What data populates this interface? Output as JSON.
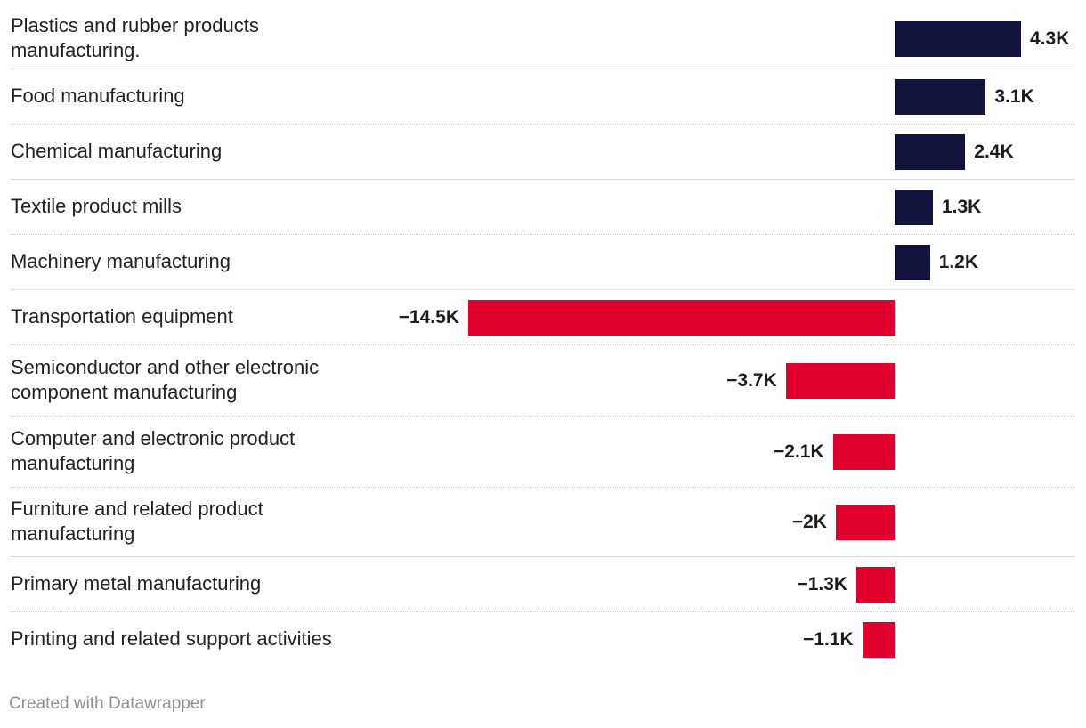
{
  "chart_data": {
    "type": "bar",
    "orientation": "horizontal",
    "title": "",
    "xlabel": "",
    "ylabel": "",
    "categories": [
      "Plastics and rubber products manufacturing.",
      "Food manufacturing",
      "Chemical manufacturing",
      "Textile product mills",
      "Machinery manufacturing",
      "Transportation equipment",
      "Semiconductor and other electronic component manufacturing",
      "Computer and electronic product manufacturing",
      "Furniture and related product manufacturing",
      "Primary metal manufacturing",
      "Printing and related support activities"
    ],
    "values": [
      4300,
      3100,
      2400,
      1300,
      1200,
      -14500,
      -3700,
      -2100,
      -2000,
      -1300,
      -1100
    ],
    "value_labels": [
      "4.3K",
      "3.1K",
      "2.4K",
      "1.3K",
      "1.2K",
      "−14.5K",
      "−3.7K",
      "−2.1K",
      "−2K",
      "−1.3K",
      "−1.1K"
    ],
    "xlim": [
      -14500,
      4300
    ],
    "colors": {
      "positive": "#13133f",
      "negative": "#e1002d"
    }
  },
  "footer": {
    "credit": "Created with Datawrapper"
  }
}
